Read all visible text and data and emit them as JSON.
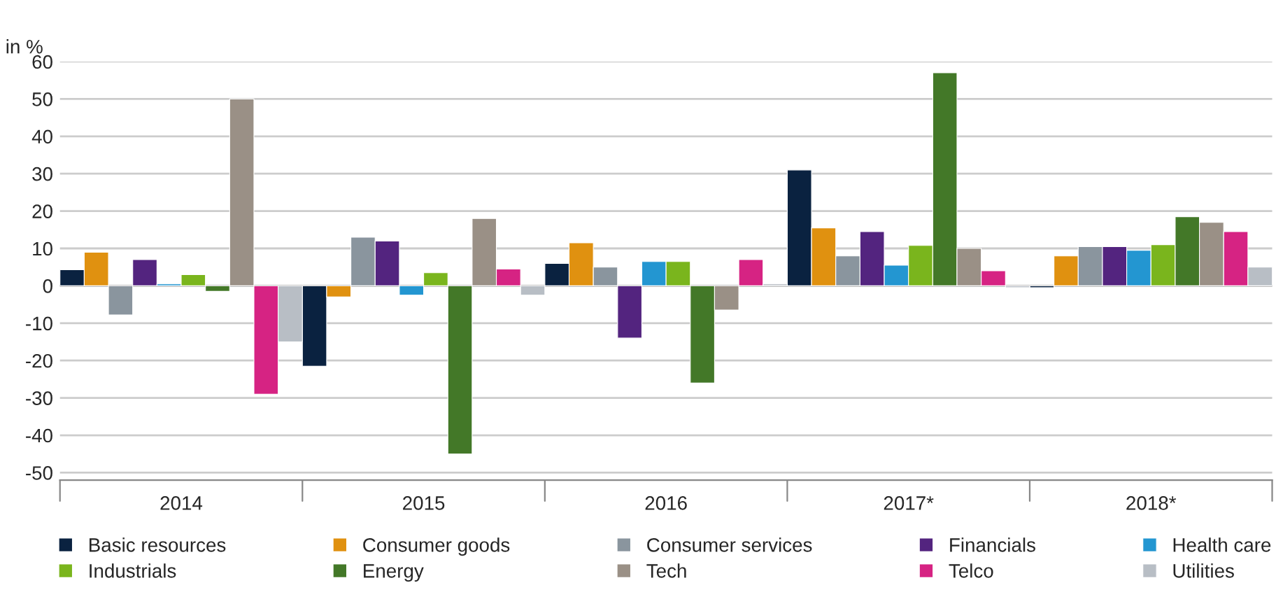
{
  "chart_data": {
    "type": "bar",
    "ylabel": "in %",
    "categories": [
      "2014",
      "2015",
      "2016",
      "2017*",
      "2018*"
    ],
    "series": [
      {
        "name": "Basic resources",
        "color": "#0a2240",
        "values": [
          4.3,
          -21.5,
          6,
          31,
          -0.5
        ]
      },
      {
        "name": "Consumer goods",
        "color": "#e09110",
        "values": [
          9,
          -3,
          11.5,
          15.5,
          8
        ]
      },
      {
        "name": "Consumer services",
        "color": "#8a959e",
        "values": [
          -7.8,
          13,
          5,
          8,
          10.5
        ]
      },
      {
        "name": "Financials",
        "color": "#53247f",
        "values": [
          7,
          12,
          -14,
          14.5,
          10.5
        ]
      },
      {
        "name": "Health care",
        "color": "#2396d1",
        "values": [
          0.5,
          -2.5,
          6.5,
          5.5,
          9.5
        ]
      },
      {
        "name": "Industrials",
        "color": "#7ab51d",
        "values": [
          3,
          3.5,
          6.5,
          10.8,
          11
        ]
      },
      {
        "name": "Energy",
        "color": "#437828",
        "values": [
          -1.5,
          -45,
          -26,
          57,
          18.5
        ]
      },
      {
        "name": "Tech",
        "color": "#9a9086",
        "values": [
          50,
          18,
          -6.5,
          10,
          17
        ]
      },
      {
        "name": "Telco",
        "color": "#d62383",
        "values": [
          -29,
          4.5,
          7,
          4,
          14.5
        ]
      },
      {
        "name": "Utilities",
        "color": "#b8bec5",
        "values": [
          -15,
          -2.5,
          0.5,
          -0.5,
          5
        ]
      }
    ],
    "ylim": [
      -52,
      60
    ],
    "yticks": [
      -50,
      -40,
      -30,
      -20,
      -10,
      0,
      10,
      20,
      30,
      40,
      50,
      60
    ],
    "grid": "y",
    "legend": "bottom"
  }
}
